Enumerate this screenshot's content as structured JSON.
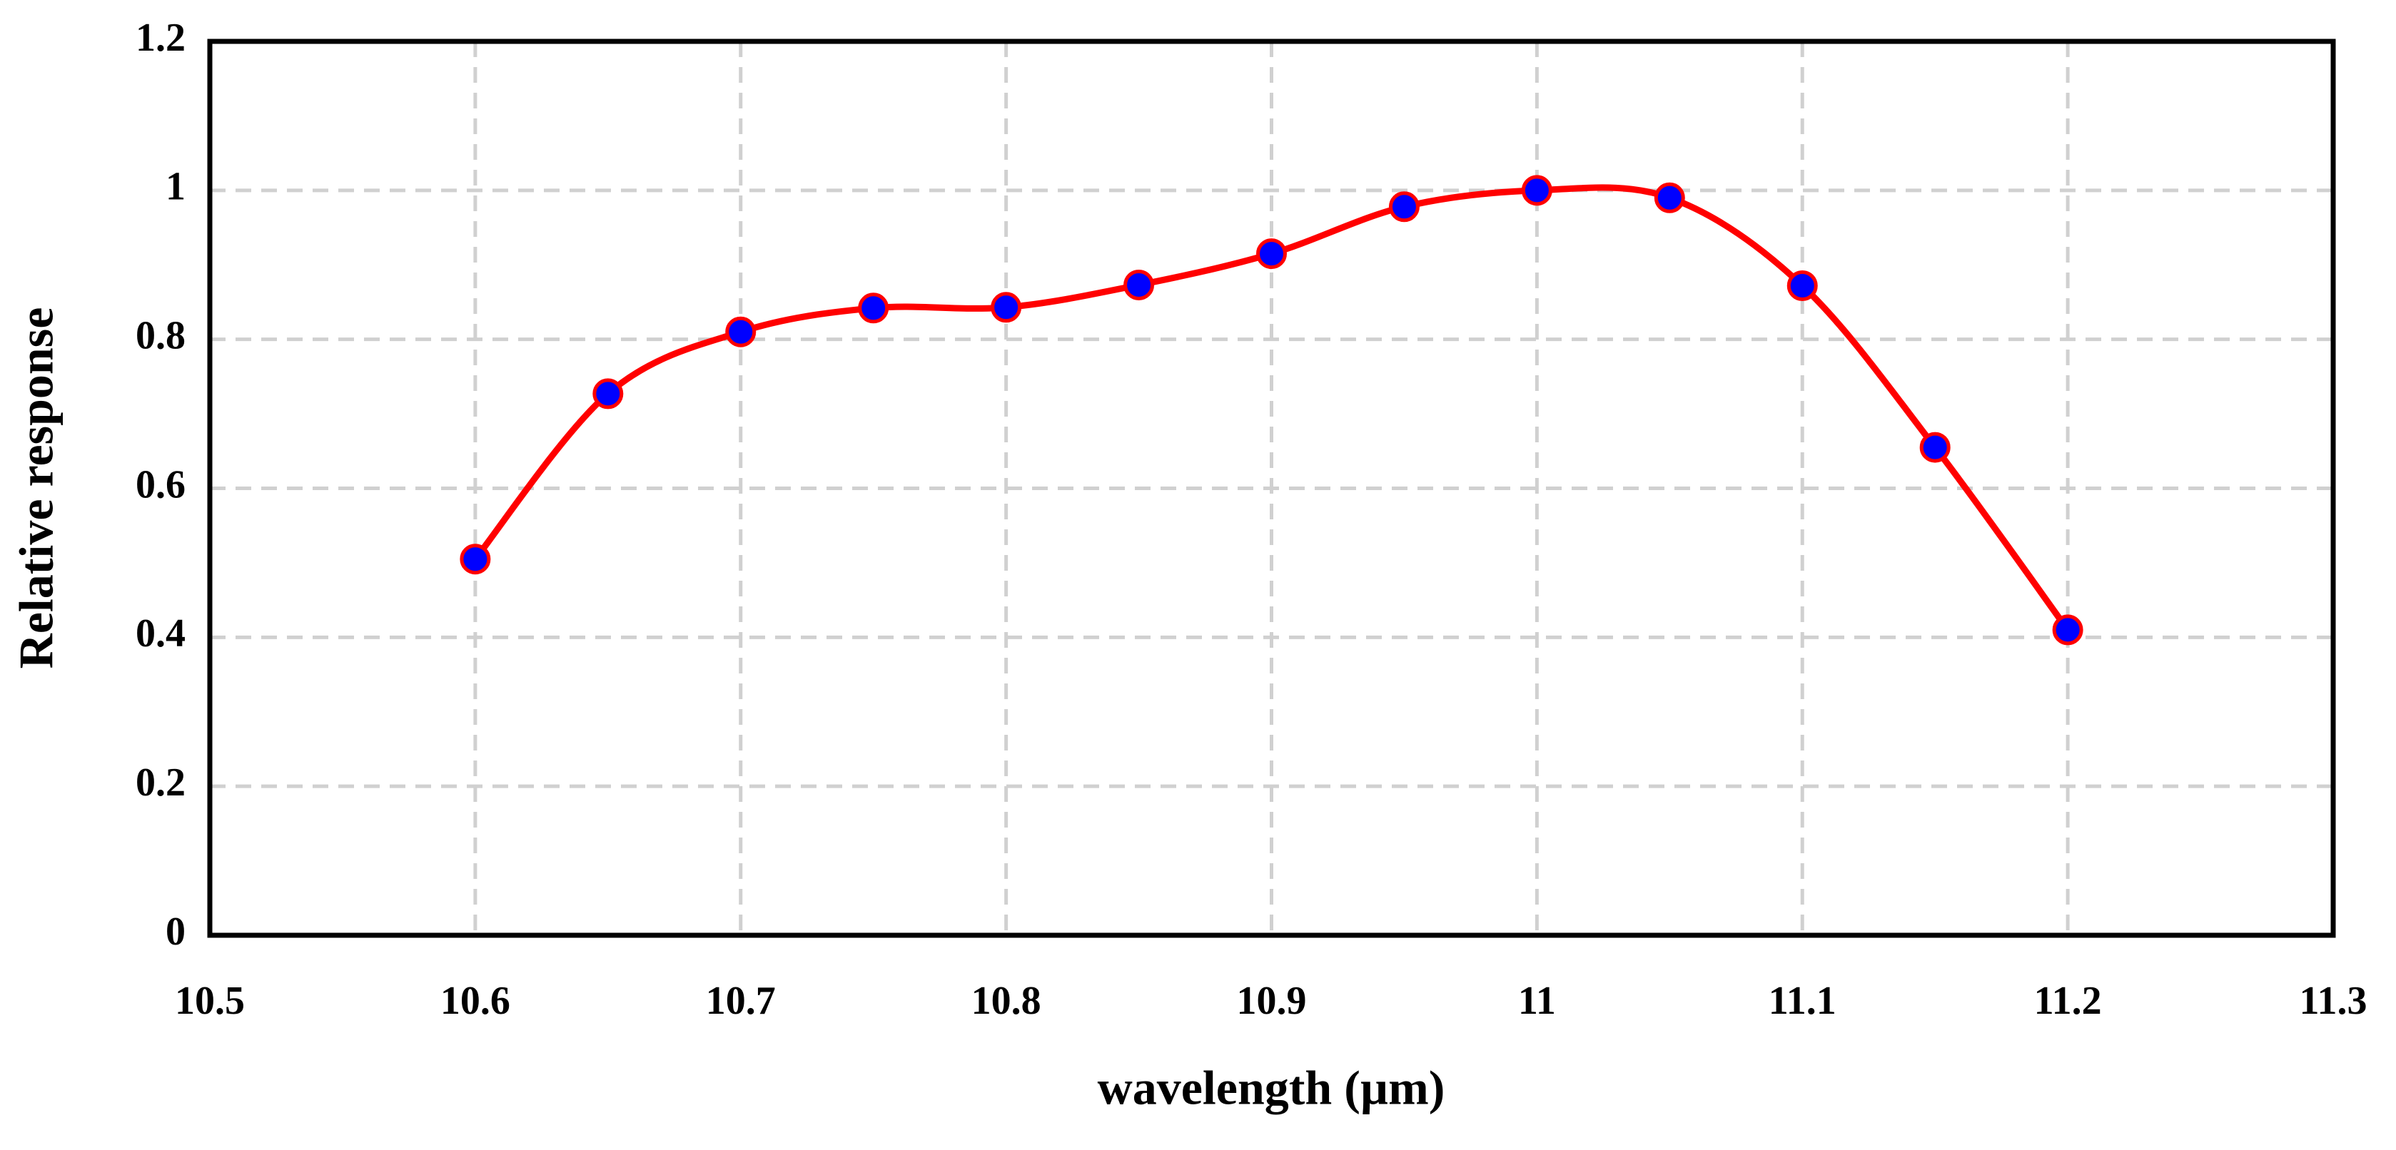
{
  "chart_data": {
    "type": "line",
    "xlabel": "wavelength (µm)",
    "ylabel": "Relative response",
    "x": [
      10.6,
      10.65,
      10.7,
      10.75,
      10.8,
      10.85,
      10.9,
      10.95,
      11.0,
      11.05,
      11.1,
      11.15,
      11.2
    ],
    "values": [
      0.505,
      0.727,
      0.81,
      0.842,
      0.843,
      0.873,
      0.915,
      0.978,
      1.0,
      0.99,
      0.872,
      0.655,
      0.41
    ],
    "color": "#ff0000",
    "marker_color": "#0000ff",
    "smooth": true,
    "xlim": [
      10.5,
      11.3
    ],
    "xticks": [
      10.5,
      10.6,
      10.7,
      10.8,
      10.9,
      11,
      11.1,
      11.2,
      11.3
    ],
    "ylim": [
      0,
      1.2
    ],
    "yticks": [
      0,
      0.2,
      0.4,
      0.6,
      0.8,
      1,
      1.2
    ],
    "grid": true
  }
}
